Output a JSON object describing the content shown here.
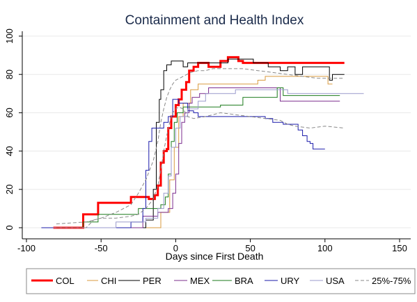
{
  "chart_data": {
    "type": "line",
    "title": "Containment and Health Index",
    "xlabel": "Days since First Death",
    "ylabel": "",
    "xlim": [
      -100,
      150
    ],
    "ylim": [
      0,
      100
    ],
    "xticks": [
      -100,
      -50,
      0,
      50,
      100,
      150
    ],
    "yticks": [
      0,
      20,
      40,
      60,
      80,
      100
    ],
    "grid": true,
    "legend_position": "bottom",
    "series": [
      {
        "name": "COL",
        "color": "#ff0000",
        "dash": "",
        "width": 3,
        "points": [
          [
            -82,
            0
          ],
          [
            -62,
            0
          ],
          [
            -62,
            7
          ],
          [
            -52,
            7
          ],
          [
            -52,
            13
          ],
          [
            -30,
            13
          ],
          [
            -30,
            16
          ],
          [
            -18,
            16
          ],
          [
            -18,
            15
          ],
          [
            -14,
            15
          ],
          [
            -14,
            17
          ],
          [
            -12,
            17
          ],
          [
            -12,
            22
          ],
          [
            -10,
            22
          ],
          [
            -10,
            34
          ],
          [
            -8,
            34
          ],
          [
            -8,
            40
          ],
          [
            -6,
            40
          ],
          [
            -6,
            41
          ],
          [
            -5,
            41
          ],
          [
            -5,
            52
          ],
          [
            -3,
            52
          ],
          [
            -3,
            58
          ],
          [
            0,
            58
          ],
          [
            0,
            64
          ],
          [
            2,
            64
          ],
          [
            2,
            67
          ],
          [
            4,
            67
          ],
          [
            4,
            72
          ],
          [
            7,
            72
          ],
          [
            7,
            76
          ],
          [
            9,
            76
          ],
          [
            9,
            82
          ],
          [
            12,
            82
          ],
          [
            12,
            84
          ],
          [
            15,
            84
          ],
          [
            15,
            86
          ],
          [
            22,
            86
          ],
          [
            22,
            84
          ],
          [
            30,
            84
          ],
          [
            30,
            87
          ],
          [
            35,
            87
          ],
          [
            35,
            89
          ],
          [
            42,
            89
          ],
          [
            42,
            87
          ],
          [
            45,
            87
          ],
          [
            45,
            86
          ],
          [
            113,
            86
          ]
        ]
      },
      {
        "name": "CHI",
        "color": "#d99a3d",
        "dash": "",
        "width": 1,
        "points": [
          [
            -75,
            0
          ],
          [
            -10,
            0
          ],
          [
            -10,
            8
          ],
          [
            -4,
            8
          ],
          [
            -4,
            25
          ],
          [
            -1,
            25
          ],
          [
            -1,
            42
          ],
          [
            2,
            42
          ],
          [
            2,
            58
          ],
          [
            5,
            58
          ],
          [
            5,
            65
          ],
          [
            10,
            65
          ],
          [
            10,
            72
          ],
          [
            15,
            72
          ],
          [
            15,
            75
          ],
          [
            55,
            75
          ],
          [
            55,
            77
          ],
          [
            60,
            77
          ],
          [
            60,
            79
          ],
          [
            102,
            79
          ],
          [
            102,
            75
          ],
          [
            105,
            75
          ]
        ]
      },
      {
        "name": "PER",
        "color": "#000000",
        "dash": "",
        "width": 1,
        "points": [
          [
            -80,
            0
          ],
          [
            -20,
            0
          ],
          [
            -20,
            4
          ],
          [
            -15,
            4
          ],
          [
            -15,
            20
          ],
          [
            -13,
            20
          ],
          [
            -13,
            55
          ],
          [
            -11,
            55
          ],
          [
            -11,
            67
          ],
          [
            -10,
            67
          ],
          [
            -10,
            72
          ],
          [
            -8,
            72
          ],
          [
            -8,
            82
          ],
          [
            -6,
            82
          ],
          [
            -6,
            85
          ],
          [
            -3,
            85
          ],
          [
            -3,
            87
          ],
          [
            5,
            87
          ],
          [
            5,
            84
          ],
          [
            8,
            84
          ],
          [
            8,
            86
          ],
          [
            35,
            86
          ],
          [
            35,
            88
          ],
          [
            52,
            88
          ],
          [
            52,
            86
          ],
          [
            62,
            86
          ],
          [
            62,
            84
          ],
          [
            70,
            84
          ],
          [
            70,
            82
          ],
          [
            75,
            82
          ],
          [
            75,
            84
          ],
          [
            80,
            84
          ],
          [
            80,
            80
          ],
          [
            85,
            80
          ],
          [
            85,
            84
          ],
          [
            103,
            84
          ],
          [
            103,
            77
          ],
          [
            105,
            77
          ],
          [
            105,
            80
          ],
          [
            113,
            80
          ]
        ]
      },
      {
        "name": "MEX",
        "color": "#7b2c8e",
        "dash": "",
        "width": 1,
        "points": [
          [
            -70,
            0
          ],
          [
            -22,
            0
          ],
          [
            -22,
            6
          ],
          [
            -12,
            6
          ],
          [
            -12,
            8
          ],
          [
            -5,
            8
          ],
          [
            -5,
            10
          ],
          [
            -2,
            10
          ],
          [
            -2,
            18
          ],
          [
            0,
            18
          ],
          [
            0,
            28
          ],
          [
            2,
            28
          ],
          [
            2,
            44
          ],
          [
            4,
            44
          ],
          [
            4,
            55
          ],
          [
            6,
            55
          ],
          [
            6,
            60
          ],
          [
            9,
            60
          ],
          [
            9,
            65
          ],
          [
            11,
            65
          ],
          [
            11,
            68
          ],
          [
            16,
            68
          ],
          [
            16,
            70
          ],
          [
            22,
            70
          ],
          [
            22,
            73
          ],
          [
            70,
            73
          ],
          [
            70,
            66
          ],
          [
            110,
            66
          ]
        ]
      },
      {
        "name": "BRA",
        "color": "#1a7a1a",
        "dash": "",
        "width": 1,
        "points": [
          [
            -75,
            0
          ],
          [
            -62,
            0
          ],
          [
            -62,
            3
          ],
          [
            -52,
            3
          ],
          [
            -52,
            7
          ],
          [
            -25,
            7
          ],
          [
            -25,
            10
          ],
          [
            -10,
            10
          ],
          [
            -10,
            12
          ],
          [
            -7,
            12
          ],
          [
            -7,
            16
          ],
          [
            -5,
            16
          ],
          [
            -5,
            28
          ],
          [
            -3,
            28
          ],
          [
            -3,
            45
          ],
          [
            -1,
            45
          ],
          [
            -1,
            55
          ],
          [
            1,
            55
          ],
          [
            1,
            60
          ],
          [
            5,
            60
          ],
          [
            5,
            63
          ],
          [
            30,
            63
          ],
          [
            30,
            64
          ],
          [
            45,
            64
          ],
          [
            45,
            68
          ],
          [
            68,
            68
          ],
          [
            68,
            73
          ],
          [
            72,
            73
          ],
          [
            72,
            69
          ],
          [
            110,
            69
          ]
        ]
      },
      {
        "name": "URY",
        "color": "#1a1aaa",
        "dash": "",
        "width": 1,
        "points": [
          [
            -90,
            0
          ],
          [
            -30,
            0
          ],
          [
            -30,
            3
          ],
          [
            -22,
            3
          ],
          [
            -22,
            10
          ],
          [
            -20,
            10
          ],
          [
            -20,
            30
          ],
          [
            -18,
            30
          ],
          [
            -18,
            45
          ],
          [
            -16,
            45
          ],
          [
            -16,
            52
          ],
          [
            -8,
            52
          ],
          [
            -8,
            55
          ],
          [
            -5,
            55
          ],
          [
            -5,
            58
          ],
          [
            -2,
            58
          ],
          [
            -2,
            67
          ],
          [
            2,
            67
          ],
          [
            2,
            65
          ],
          [
            8,
            65
          ],
          [
            8,
            61
          ],
          [
            12,
            61
          ],
          [
            12,
            60
          ],
          [
            15,
            60
          ],
          [
            15,
            58
          ],
          [
            60,
            58
          ],
          [
            60,
            57
          ],
          [
            65,
            57
          ],
          [
            65,
            55
          ],
          [
            72,
            55
          ],
          [
            72,
            54
          ],
          [
            82,
            54
          ],
          [
            82,
            51
          ],
          [
            85,
            51
          ],
          [
            85,
            48
          ],
          [
            88,
            48
          ],
          [
            88,
            45
          ],
          [
            90,
            45
          ],
          [
            90,
            44
          ],
          [
            92,
            44
          ],
          [
            92,
            41
          ],
          [
            100,
            41
          ]
        ]
      },
      {
        "name": "USA",
        "color": "#9a9acc",
        "dash": "",
        "width": 1,
        "points": [
          [
            -82,
            0
          ],
          [
            -40,
            0
          ],
          [
            -40,
            3
          ],
          [
            -20,
            3
          ],
          [
            -20,
            5
          ],
          [
            -12,
            5
          ],
          [
            -12,
            10
          ],
          [
            -8,
            10
          ],
          [
            -8,
            18
          ],
          [
            -5,
            18
          ],
          [
            -5,
            27
          ],
          [
            -3,
            27
          ],
          [
            -3,
            42
          ],
          [
            0,
            42
          ],
          [
            0,
            52
          ],
          [
            3,
            52
          ],
          [
            3,
            58
          ],
          [
            8,
            58
          ],
          [
            8,
            62
          ],
          [
            15,
            62
          ],
          [
            15,
            66
          ],
          [
            20,
            66
          ],
          [
            20,
            70
          ],
          [
            40,
            70
          ],
          [
            40,
            72
          ],
          [
            75,
            72
          ],
          [
            75,
            70
          ],
          [
            126,
            70
          ]
        ]
      },
      {
        "name": "25%-75%",
        "color": "#888888",
        "dash": "5,3",
        "width": 1,
        "points": [
          [
            -80,
            0
          ],
          [
            -60,
            0
          ],
          [
            -55,
            4
          ],
          [
            -50,
            5
          ],
          [
            -40,
            5
          ],
          [
            -30,
            6
          ],
          [
            -25,
            7
          ],
          [
            -20,
            10
          ],
          [
            -15,
            15
          ],
          [
            -12,
            22
          ],
          [
            -10,
            30
          ],
          [
            -8,
            40
          ],
          [
            -6,
            48
          ],
          [
            -4,
            55
          ],
          [
            -2,
            60
          ],
          [
            0,
            62
          ],
          [
            2,
            63
          ],
          [
            5,
            62
          ],
          [
            8,
            58
          ],
          [
            12,
            57
          ],
          [
            20,
            58
          ],
          [
            30,
            60
          ],
          [
            40,
            59
          ],
          [
            50,
            58
          ],
          [
            60,
            57
          ],
          [
            70,
            56
          ],
          [
            75,
            54
          ],
          [
            80,
            53
          ],
          [
            90,
            52
          ],
          [
            100,
            53
          ],
          [
            113,
            52
          ]
        ]
      },
      {
        "name": "",
        "color": "#888888",
        "dash": "5,3",
        "width": 1,
        "points": [
          [
            -80,
            2
          ],
          [
            -60,
            3
          ],
          [
            -50,
            5
          ],
          [
            -40,
            8
          ],
          [
            -30,
            12
          ],
          [
            -25,
            18
          ],
          [
            -20,
            25
          ],
          [
            -15,
            35
          ],
          [
            -12,
            45
          ],
          [
            -10,
            55
          ],
          [
            -8,
            62
          ],
          [
            -6,
            68
          ],
          [
            -4,
            72
          ],
          [
            -2,
            75
          ],
          [
            0,
            77
          ],
          [
            5,
            79
          ],
          [
            10,
            81
          ],
          [
            15,
            82
          ],
          [
            20,
            82
          ],
          [
            25,
            83
          ],
          [
            35,
            83
          ],
          [
            45,
            83
          ],
          [
            55,
            82
          ],
          [
            65,
            81
          ],
          [
            75,
            80
          ],
          [
            85,
            79
          ],
          [
            95,
            78
          ],
          [
            105,
            78
          ],
          [
            113,
            78
          ]
        ]
      }
    ]
  }
}
